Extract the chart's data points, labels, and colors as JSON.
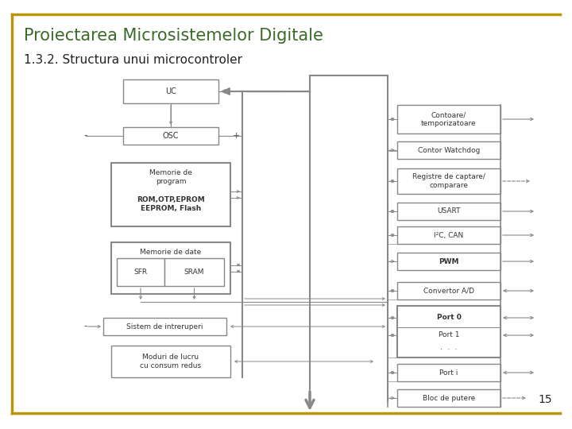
{
  "title": "Proiectarea Microsistemelor Digitale",
  "subtitle": "1.3.2. Structura unui microcontroler",
  "page_number": "15",
  "title_color": "#3a6b28",
  "subtitle_color": "#222222",
  "border_color": "#b8960c",
  "background_color": "#ffffff",
  "box_edge_color": "#888888",
  "line_color": "#888888",
  "figsize": [
    7.2,
    5.4
  ],
  "dpi": 100
}
